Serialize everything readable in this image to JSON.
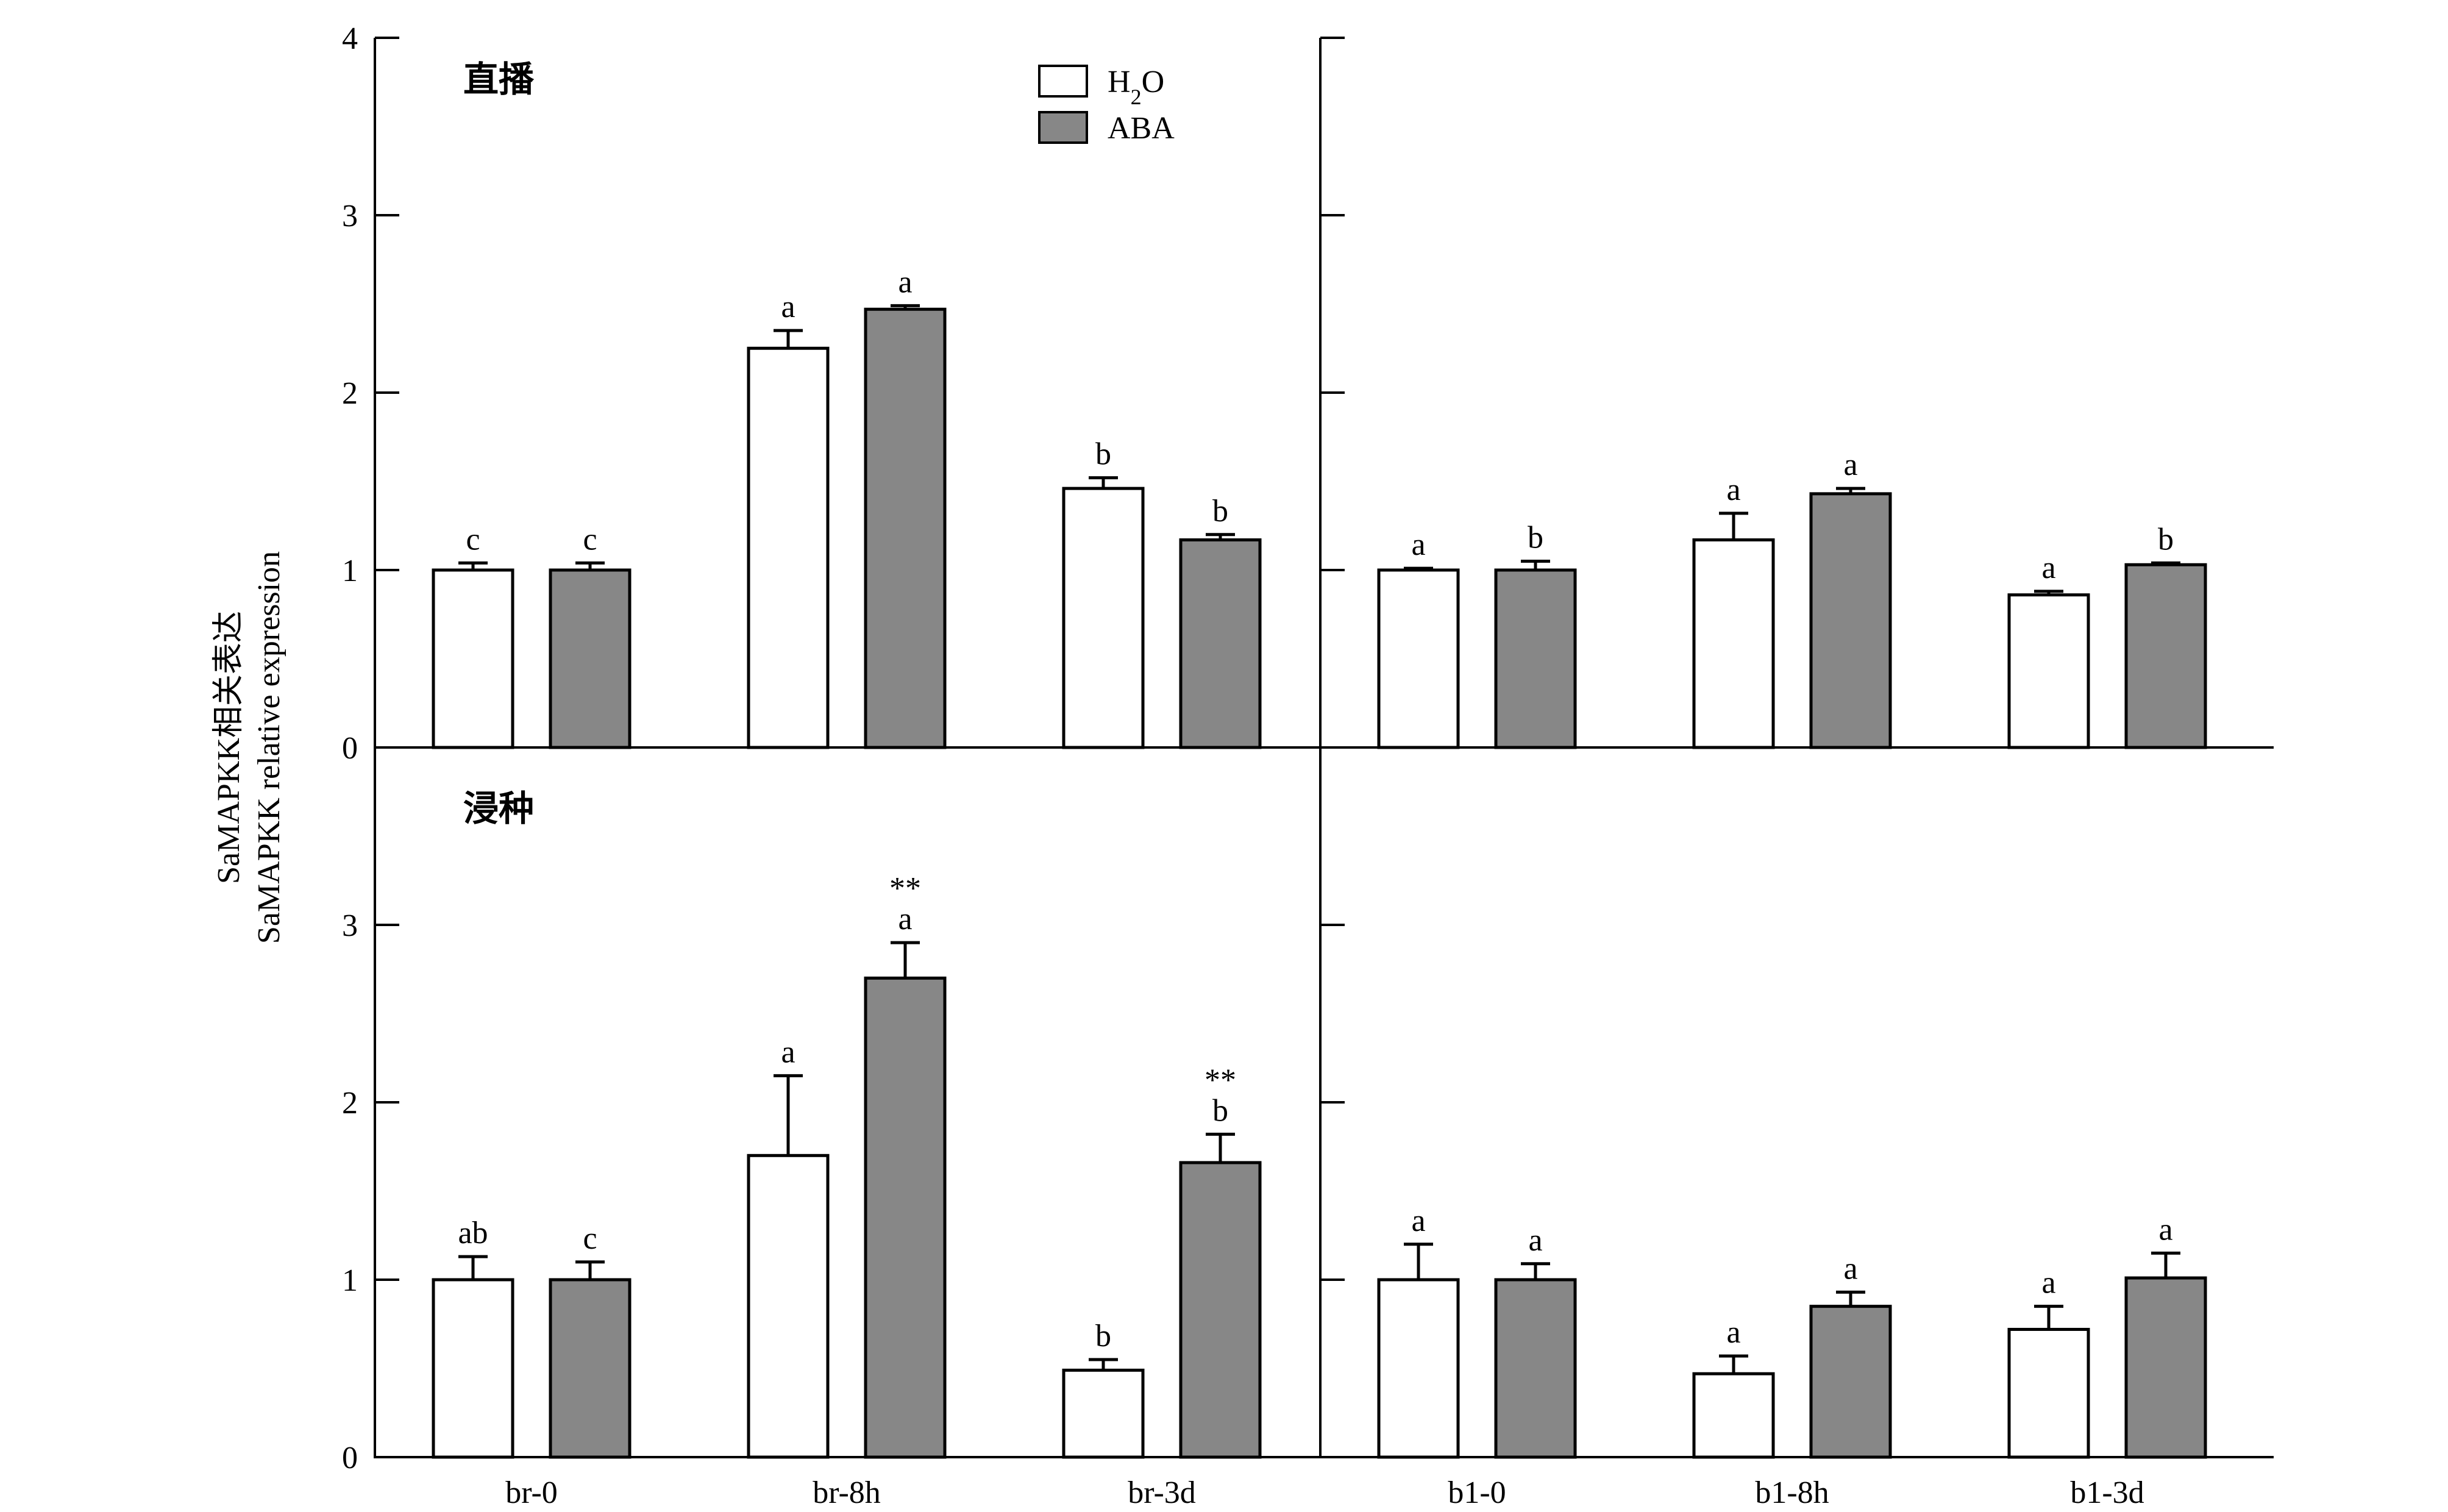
{
  "chart_data": {
    "type": "bar",
    "ylabel_lines": [
      "SaMAPKK相关表达",
      "SaMAPKK relative expression"
    ],
    "categories": [
      "br-0",
      "br-8h",
      "br-3d",
      "b1-0",
      "b1-8h",
      "b1-3d"
    ],
    "legend": {
      "placement": "top",
      "items": [
        {
          "label_main": "H",
          "label_sub": "2",
          "label_tail": "O",
          "color": "#ffffff"
        },
        {
          "label_main": "ABA",
          "label_sub": "",
          "label_tail": "",
          "color": "#878787"
        }
      ]
    },
    "yticks_top": [
      "0",
      "1",
      "2",
      "3",
      "4"
    ],
    "yticks_bottom": [
      "0",
      "1",
      "2",
      "3"
    ],
    "panels": [
      {
        "label": "直播",
        "ylim": [
          0,
          4
        ],
        "series": [
          {
            "values": [
              1.0,
              2.25,
              1.46,
              1.0,
              1.17,
              0.86
            ],
            "errors": [
              0.04,
              0.1,
              0.06,
              0.01,
              0.15,
              0.02
            ],
            "letters": [
              "c",
              "a",
              "b",
              "a",
              "a",
              "a"
            ],
            "marks": [
              "",
              "",
              "",
              "",
              "",
              ""
            ]
          },
          {
            "values": [
              1.0,
              2.47,
              1.17,
              1.0,
              1.43,
              1.03
            ],
            "errors": [
              0.04,
              0.02,
              0.03,
              0.05,
              0.03,
              0.01
            ],
            "letters": [
              "c",
              "a",
              "b",
              "b",
              "a",
              "b"
            ],
            "marks": [
              "",
              "",
              "",
              "",
              "",
              ""
            ]
          }
        ]
      },
      {
        "label": "浸种",
        "ylim": [
          0,
          4
        ],
        "series": [
          {
            "values": [
              1.0,
              1.7,
              0.49,
              1.0,
              0.47,
              0.72
            ],
            "errors": [
              0.13,
              0.45,
              0.06,
              0.2,
              0.1,
              0.13
            ],
            "letters": [
              "ab",
              "a",
              "b",
              "a",
              "a",
              "a"
            ],
            "marks": [
              "",
              "",
              "",
              "",
              "",
              ""
            ]
          },
          {
            "values": [
              1.0,
              2.7,
              1.66,
              1.0,
              0.85,
              1.01
            ],
            "errors": [
              0.1,
              0.2,
              0.16,
              0.09,
              0.08,
              0.14
            ],
            "letters": [
              "c",
              "a",
              "b",
              "a",
              "a",
              "a"
            ],
            "marks": [
              "",
              "**",
              "**",
              "",
              "",
              ""
            ]
          }
        ]
      }
    ]
  }
}
